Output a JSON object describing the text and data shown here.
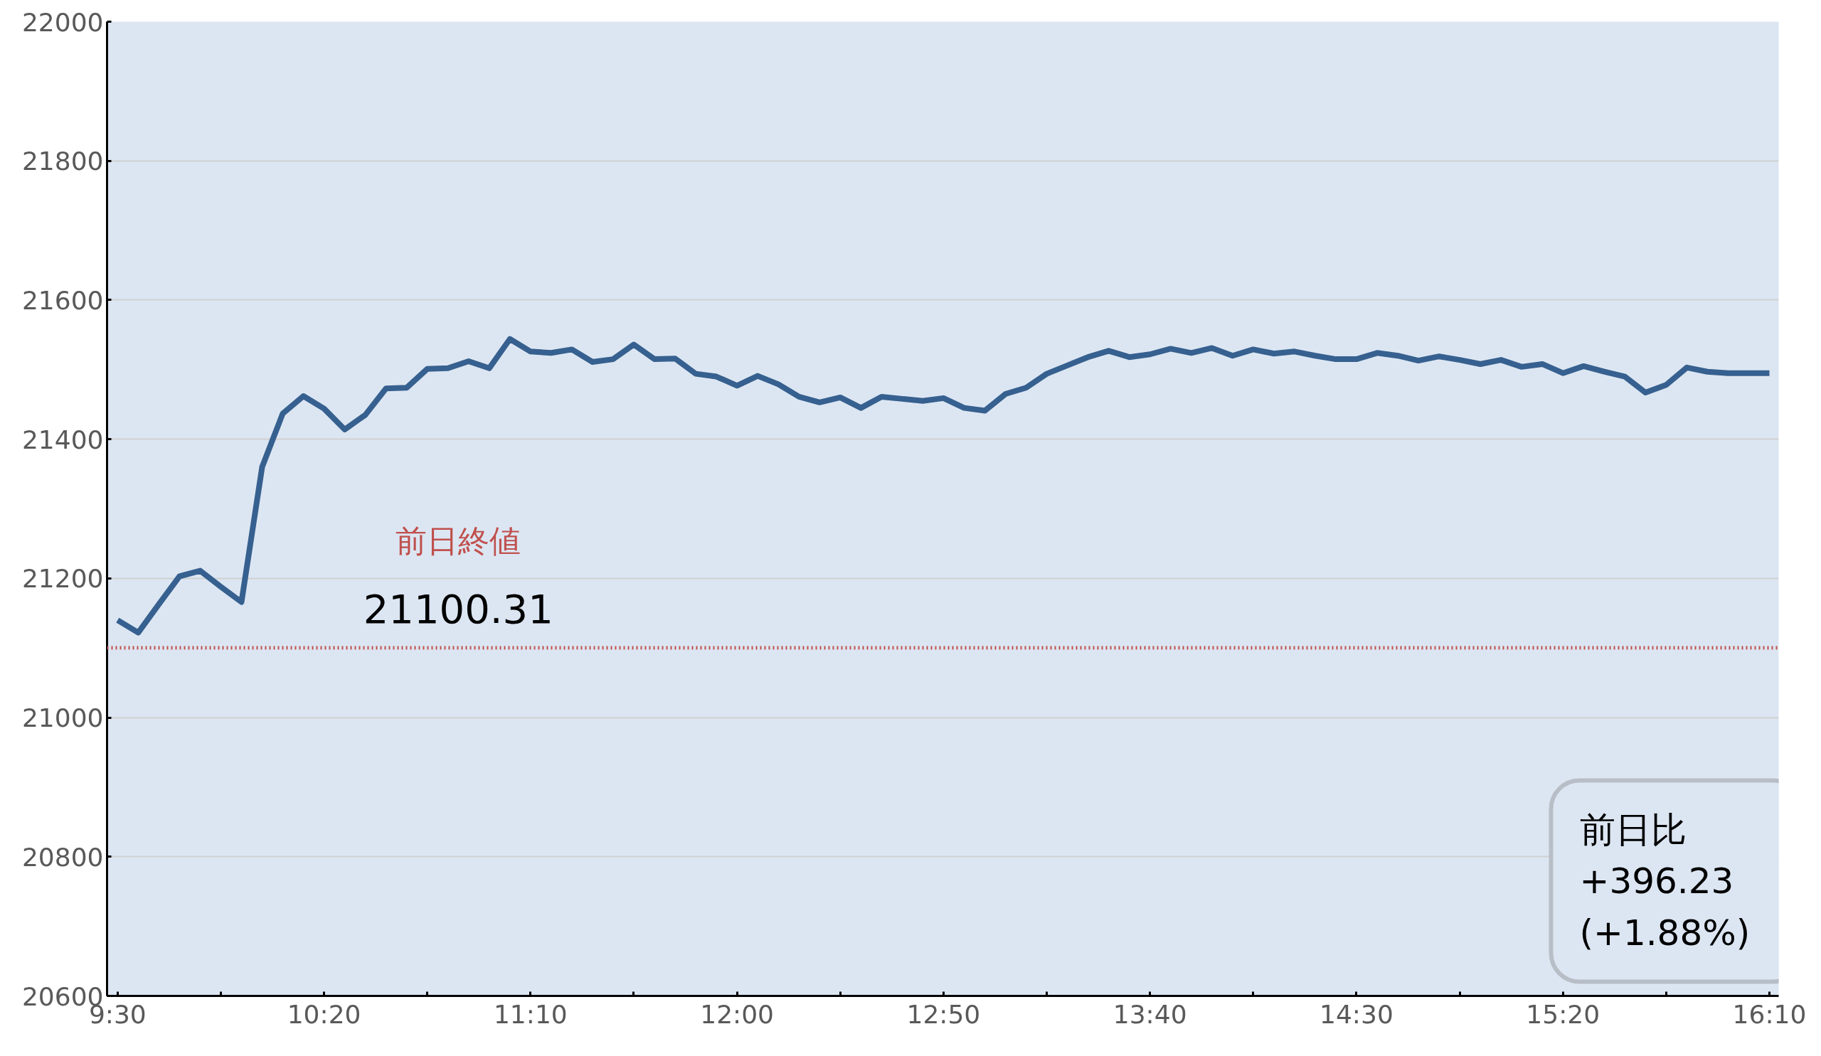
{
  "chart_data": {
    "type": "line",
    "x": [
      9.5,
      9.583333,
      9.666667,
      9.75,
      9.833333,
      9.916667,
      10.0,
      10.083333,
      10.166667,
      10.25,
      10.333333,
      10.416667,
      10.5,
      10.583333,
      10.666667,
      10.75,
      10.833333,
      10.916667,
      11.0,
      11.083333,
      11.166667,
      11.25,
      11.333333,
      11.416667,
      11.5,
      11.583333,
      11.666667,
      11.75,
      11.833333,
      11.916667,
      12.0,
      12.083333,
      12.166667,
      12.25,
      12.333333,
      12.416667,
      12.5,
      12.583333,
      12.666667,
      12.75,
      12.833333,
      12.916667,
      13.0,
      13.083333,
      13.166667,
      13.25,
      13.333333,
      13.416667,
      13.5,
      13.583333,
      13.666667,
      13.75,
      13.833333,
      13.916667,
      14.0,
      14.083333,
      14.166667,
      14.25,
      14.333333,
      14.416667,
      14.5,
      14.583333,
      14.666667,
      14.75,
      14.833333,
      14.916667,
      15.0,
      15.083333,
      15.166667,
      15.25,
      15.333333,
      15.416667,
      15.5,
      15.583333,
      15.666667,
      15.75,
      15.833333,
      15.916667,
      16.0,
      16.083333,
      16.166667
    ],
    "series": [
      {
        "color": "#36608f",
        "values": [
          21140,
          21122,
          21163,
          21203,
          21211,
          21188,
          21166,
          21360,
          21437,
          21462,
          21444,
          21414,
          21435,
          21473,
          21474,
          21501,
          21502,
          21512,
          21502,
          21544,
          21526,
          21524,
          21529,
          21511,
          21515,
          21536,
          21515,
          21516,
          21494,
          21490,
          21477,
          21491,
          21479,
          21461,
          21453,
          21460,
          21445,
          21461,
          21458,
          21455,
          21459,
          21445,
          21441,
          21465,
          21474,
          21494,
          21506,
          21518,
          21527,
          21518,
          21522,
          21530,
          21524,
          21531,
          21520,
          21529,
          21523,
          21526,
          21520,
          21515,
          21515,
          21524,
          21520,
          21513,
          21519,
          21514,
          21508,
          21514,
          21504,
          21508,
          21495,
          21505,
          21497,
          21490,
          21467,
          21478,
          21503,
          21497,
          21495,
          21495,
          21495
        ]
      }
    ],
    "xlim": [
      9.4575,
      16.204
    ],
    "xticks": [
      {
        "value": 9.5,
        "label": "9:30"
      },
      {
        "value": 9.916667,
        "label": null
      },
      {
        "value": 10.333333,
        "label": "10:20"
      },
      {
        "value": 10.75,
        "label": null
      },
      {
        "value": 11.166667,
        "label": "11:10"
      },
      {
        "value": 11.583333,
        "label": null
      },
      {
        "value": 12.0,
        "label": "12:00"
      },
      {
        "value": 12.416667,
        "label": null
      },
      {
        "value": 12.833333,
        "label": "12:50"
      },
      {
        "value": 13.25,
        "label": null
      },
      {
        "value": 13.666667,
        "label": "13:40"
      },
      {
        "value": 14.083333,
        "label": null
      },
      {
        "value": 14.5,
        "label": "14:30"
      },
      {
        "value": 14.916667,
        "label": null
      },
      {
        "value": 15.333333,
        "label": "15:20"
      },
      {
        "value": 15.75,
        "label": null
      },
      {
        "value": 16.166667,
        "label": "16:10"
      }
    ],
    "ylim": [
      20600,
      22000
    ],
    "yticks": [
      20600,
      20800,
      21000,
      21200,
      21400,
      21600,
      21800,
      22000
    ],
    "grid": "y",
    "marker": "none",
    "line_style": "solid",
    "ref_lines": [
      {
        "axis": "y",
        "value": 21100.31,
        "label": "前日終値",
        "color": "#c0504d",
        "line_style": "dotted"
      }
    ],
    "annotations": [
      {
        "text": "21100.31",
        "x": 10.875,
        "y": 21100.31
      },
      "前日比\n  +396.23\n  (+1.88%)"
    ]
  }
}
